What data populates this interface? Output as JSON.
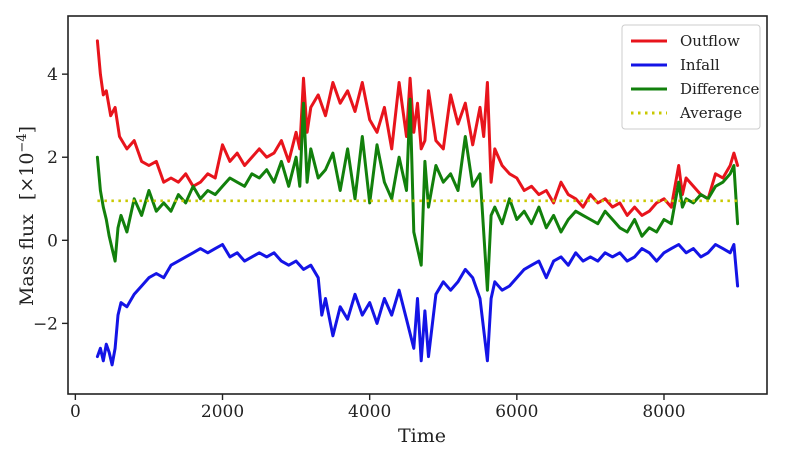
{
  "chart_data": {
    "type": "line",
    "xlabel": "Time",
    "ylabel": "Mass flux",
    "ylabel_unit": "[×10",
    "ylabel_exp": "−4",
    "ylabel_close": "]",
    "xlim": [
      -100,
      9400
    ],
    "ylim": [
      -3.7,
      5.4
    ],
    "xticks": [
      0,
      2000,
      4000,
      6000,
      8000
    ],
    "xtick_labels": [
      "0",
      "2000",
      "4000",
      "6000",
      "8000"
    ],
    "yticks": [
      -2,
      0,
      2,
      4
    ],
    "ytick_labels": [
      "−2",
      "0",
      "2",
      "4"
    ],
    "grid": false,
    "legend_position": "top-right",
    "series": [
      {
        "name": "Outflow",
        "color": "#e8141c",
        "style": "solid",
        "x": [
          300,
          340,
          380,
          420,
          480,
          540,
          600,
          700,
          800,
          900,
          1000,
          1100,
          1200,
          1300,
          1400,
          1500,
          1600,
          1700,
          1800,
          1900,
          2000,
          2100,
          2200,
          2300,
          2400,
          2500,
          2600,
          2700,
          2800,
          2900,
          3000,
          3050,
          3100,
          3150,
          3200,
          3300,
          3400,
          3500,
          3600,
          3700,
          3800,
          3900,
          4000,
          4100,
          4200,
          4300,
          4400,
          4500,
          4550,
          4600,
          4650,
          4700,
          4750,
          4800,
          4900,
          5000,
          5100,
          5200,
          5300,
          5400,
          5500,
          5550,
          5600,
          5650,
          5700,
          5800,
          5900,
          6000,
          6100,
          6200,
          6300,
          6400,
          6500,
          6600,
          6700,
          6800,
          6900,
          7000,
          7100,
          7200,
          7300,
          7400,
          7500,
          7600,
          7700,
          7800,
          7900,
          8000,
          8100,
          8200,
          8250,
          8300,
          8400,
          8500,
          8600,
          8700,
          8800,
          8900,
          8950,
          9000
        ],
        "values": [
          4.8,
          4.0,
          3.5,
          3.6,
          3.0,
          3.2,
          2.5,
          2.2,
          2.4,
          1.9,
          1.8,
          1.9,
          1.4,
          1.5,
          1.4,
          1.6,
          1.3,
          1.4,
          1.6,
          1.5,
          2.3,
          1.9,
          2.1,
          1.8,
          2.0,
          2.2,
          2.0,
          2.1,
          2.4,
          1.9,
          2.6,
          2.2,
          3.9,
          2.6,
          3.2,
          3.5,
          3.0,
          3.8,
          3.3,
          3.6,
          3.1,
          3.8,
          2.9,
          2.6,
          3.2,
          2.2,
          3.8,
          2.5,
          3.9,
          2.6,
          3.3,
          2.2,
          2.4,
          3.6,
          2.4,
          2.2,
          3.5,
          2.8,
          3.3,
          2.3,
          3.2,
          2.5,
          3.8,
          1.4,
          2.2,
          1.8,
          1.6,
          1.5,
          1.2,
          1.3,
          1.1,
          1.2,
          0.9,
          1.4,
          1.1,
          1.0,
          0.8,
          1.1,
          0.9,
          1.0,
          0.8,
          0.9,
          0.6,
          0.8,
          0.6,
          0.7,
          0.9,
          1.0,
          0.8,
          1.8,
          1.1,
          1.5,
          1.3,
          1.1,
          1.0,
          1.6,
          1.5,
          1.8,
          2.1,
          1.8
        ]
      },
      {
        "name": "Infall",
        "color": "#1414e6",
        "style": "solid",
        "x": [
          300,
          340,
          380,
          420,
          460,
          500,
          540,
          580,
          620,
          700,
          800,
          900,
          1000,
          1100,
          1200,
          1300,
          1400,
          1500,
          1600,
          1700,
          1800,
          1900,
          2000,
          2100,
          2200,
          2300,
          2400,
          2500,
          2600,
          2700,
          2800,
          2900,
          3000,
          3100,
          3200,
          3300,
          3350,
          3400,
          3500,
          3600,
          3700,
          3800,
          3900,
          4000,
          4100,
          4200,
          4300,
          4400,
          4500,
          4600,
          4650,
          4700,
          4750,
          4800,
          4900,
          5000,
          5100,
          5200,
          5300,
          5400,
          5500,
          5600,
          5650,
          5700,
          5800,
          5900,
          6000,
          6100,
          6200,
          6300,
          6400,
          6500,
          6600,
          6700,
          6800,
          6900,
          7000,
          7100,
          7200,
          7300,
          7400,
          7500,
          7600,
          7700,
          7800,
          7900,
          8000,
          8100,
          8200,
          8300,
          8400,
          8500,
          8600,
          8700,
          8800,
          8900,
          8950,
          9000
        ],
        "values": [
          -2.8,
          -2.6,
          -2.9,
          -2.5,
          -2.7,
          -3.0,
          -2.6,
          -1.8,
          -1.5,
          -1.6,
          -1.3,
          -1.1,
          -0.9,
          -0.8,
          -0.9,
          -0.6,
          -0.5,
          -0.4,
          -0.3,
          -0.2,
          -0.3,
          -0.2,
          -0.1,
          -0.4,
          -0.3,
          -0.5,
          -0.4,
          -0.3,
          -0.4,
          -0.3,
          -0.5,
          -0.6,
          -0.5,
          -0.7,
          -0.6,
          -0.9,
          -1.8,
          -1.4,
          -2.3,
          -1.6,
          -1.9,
          -1.3,
          -1.8,
          -1.5,
          -2.0,
          -1.4,
          -1.8,
          -1.2,
          -1.9,
          -2.6,
          -1.4,
          -2.9,
          -1.7,
          -2.8,
          -1.3,
          -1.0,
          -1.2,
          -1.0,
          -0.7,
          -0.9,
          -1.4,
          -2.9,
          -1.4,
          -1.0,
          -1.2,
          -1.1,
          -0.9,
          -0.7,
          -0.6,
          -0.5,
          -0.9,
          -0.5,
          -0.4,
          -0.6,
          -0.3,
          -0.5,
          -0.4,
          -0.5,
          -0.3,
          -0.4,
          -0.3,
          -0.5,
          -0.4,
          -0.2,
          -0.3,
          -0.5,
          -0.3,
          -0.2,
          -0.1,
          -0.3,
          -0.2,
          -0.4,
          -0.3,
          -0.1,
          -0.2,
          -0.3,
          -0.1,
          -1.1
        ]
      },
      {
        "name": "Difference",
        "color": "#12800c",
        "style": "solid",
        "x": [
          300,
          340,
          380,
          420,
          460,
          500,
          540,
          580,
          620,
          700,
          800,
          900,
          1000,
          1100,
          1200,
          1300,
          1400,
          1500,
          1600,
          1700,
          1800,
          1900,
          2000,
          2100,
          2200,
          2300,
          2400,
          2500,
          2600,
          2700,
          2800,
          2900,
          3000,
          3050,
          3100,
          3150,
          3200,
          3300,
          3400,
          3500,
          3600,
          3700,
          3800,
          3900,
          4000,
          4100,
          4200,
          4300,
          4400,
          4500,
          4550,
          4600,
          4700,
          4750,
          4800,
          4900,
          5000,
          5100,
          5200,
          5300,
          5400,
          5500,
          5600,
          5650,
          5700,
          5800,
          5900,
          6000,
          6100,
          6200,
          6300,
          6400,
          6500,
          6600,
          6700,
          6800,
          6900,
          7000,
          7100,
          7200,
          7300,
          7400,
          7500,
          7600,
          7700,
          7800,
          7900,
          8000,
          8100,
          8200,
          8250,
          8300,
          8400,
          8500,
          8600,
          8700,
          8800,
          8900,
          8950,
          9000
        ],
        "values": [
          2.0,
          1.2,
          0.8,
          0.5,
          0.1,
          -0.2,
          -0.5,
          0.3,
          0.6,
          0.2,
          1.0,
          0.6,
          1.2,
          0.7,
          0.9,
          0.7,
          1.1,
          0.9,
          1.3,
          1.0,
          1.2,
          1.1,
          1.3,
          1.5,
          1.4,
          1.3,
          1.6,
          1.5,
          1.7,
          1.4,
          1.9,
          1.3,
          2.0,
          1.3,
          3.3,
          1.4,
          2.2,
          1.5,
          1.7,
          2.1,
          1.2,
          2.2,
          1.0,
          2.5,
          0.9,
          2.3,
          1.4,
          1.0,
          2.0,
          1.2,
          3.4,
          0.2,
          -0.6,
          1.9,
          0.8,
          1.8,
          1.4,
          1.6,
          1.2,
          2.5,
          1.3,
          1.6,
          -1.2,
          0.6,
          0.8,
          0.4,
          1.0,
          0.5,
          0.7,
          0.4,
          0.8,
          0.3,
          0.6,
          0.2,
          0.5,
          0.7,
          0.6,
          0.5,
          0.4,
          0.7,
          0.5,
          0.3,
          0.2,
          0.5,
          0.1,
          0.3,
          0.2,
          0.5,
          0.4,
          1.4,
          0.8,
          1.0,
          0.9,
          1.1,
          1.0,
          1.3,
          1.4,
          1.6,
          1.8,
          0.4
        ]
      },
      {
        "name": "Average",
        "color": "#c8c800",
        "style": "dotted",
        "x": [
          300,
          9000
        ],
        "values": [
          0.95,
          0.95
        ]
      }
    ]
  }
}
